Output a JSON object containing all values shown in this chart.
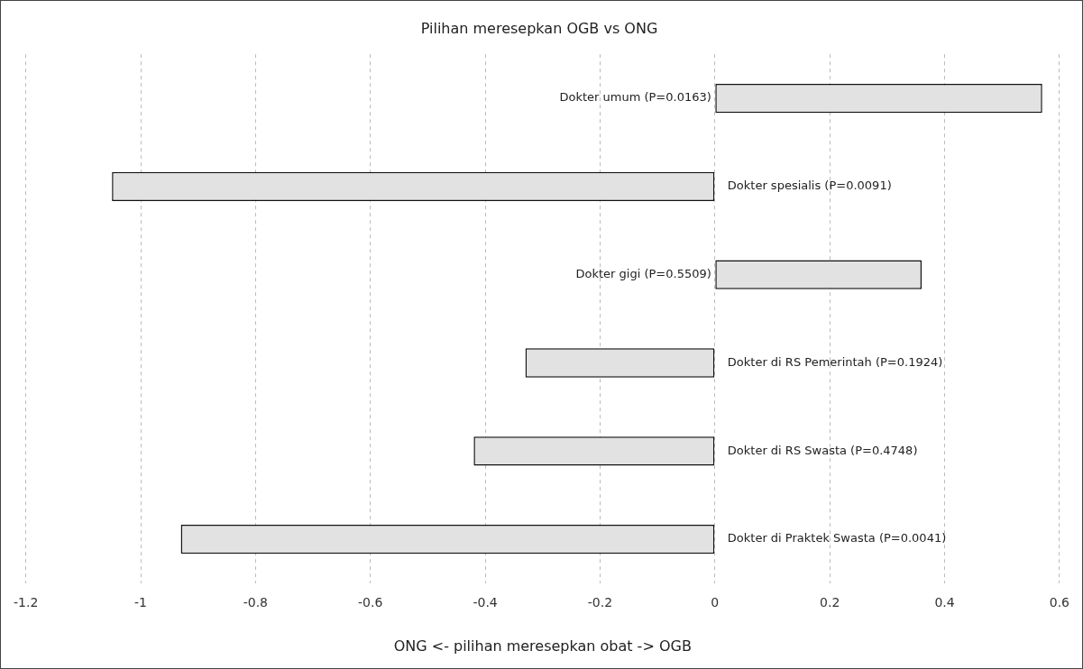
{
  "chart_data": {
    "type": "bar",
    "orientation": "horizontal",
    "title": "Pilihan meresepkan OGB vs ONG",
    "xlabel": "ONG <- pilihan meresepkan obat -> OGB",
    "categories": [
      "Dokter umum (P=0.0163)",
      "Dokter spesialis (P=0.0091)",
      "Dokter gigi (P=0.5509)",
      "Dokter di RS Pemerintah (P=0.1924)",
      "Dokter di RS Swasta (P=0.4748)",
      "Dokter di Praktek Swasta (P=0.0041)"
    ],
    "values": [
      0.57,
      -1.05,
      0.36,
      -0.33,
      -0.42,
      -0.93
    ],
    "color": "#e2e2e2",
    "xlim": [
      -1.2,
      0.6
    ],
    "xticks": [
      -1.2,
      -1,
      -0.8,
      -0.6,
      -0.4,
      -0.2,
      0,
      0.2,
      0.4,
      0.6
    ],
    "grid": "x",
    "legend": false,
    "tick_labels": "x"
  }
}
